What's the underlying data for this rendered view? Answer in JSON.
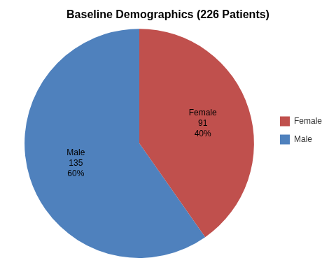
{
  "chart_data": {
    "type": "pie",
    "title": "Baseline Demographics (226 Patients)",
    "categories": [
      "Female",
      "Male"
    ],
    "values": [
      91,
      135
    ],
    "percentages": [
      40,
      60
    ],
    "percentage_labels": [
      "40%",
      "60%"
    ],
    "colors": [
      "#c0504d",
      "#4f81bd"
    ],
    "data_labels": true,
    "legend": "right"
  }
}
